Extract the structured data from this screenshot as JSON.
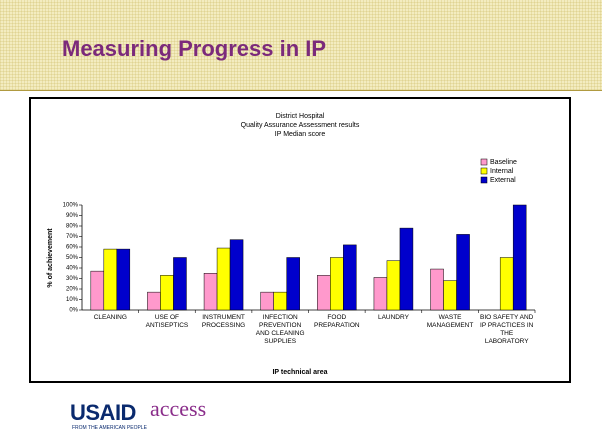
{
  "header": {
    "title": "Measuring Progress in IP"
  },
  "chart_data": {
    "type": "bar",
    "title": [
      "District Hospital",
      "Quality Assurance Assessment results",
      "IP Median score"
    ],
    "x_label": "IP technical area",
    "y_label": "% of achievement",
    "categories": [
      "CLEANING",
      "USE OF ANTISEPTICS",
      "INSTRUMENT PROCESSING",
      "INFECTION PREVENTION AND CLEANING SUPPLIES",
      "FOOD PREPARATION",
      "LAUNDRY",
      "WASTE MANAGEMENT",
      "BIO SAFETY AND IP PRACTICES IN THE LABORATORY"
    ],
    "series": [
      {
        "name": "Baseline",
        "color": "#ff99cc",
        "values": [
          37,
          17,
          35,
          17,
          33,
          31,
          39,
          null
        ]
      },
      {
        "name": "Internal",
        "color": "#ffff00",
        "values": [
          58,
          33,
          59,
          17,
          50,
          47,
          28,
          50
        ]
      },
      {
        "name": "External",
        "color": "#0000cc",
        "values": [
          58,
          50,
          67,
          50,
          62,
          78,
          72,
          100
        ]
      }
    ],
    "ylim": [
      0,
      100
    ],
    "yticks": [
      {
        "value": 0,
        "label": "0%"
      },
      {
        "value": 10,
        "label": "10%"
      },
      {
        "value": 20,
        "label": "20%"
      },
      {
        "value": 30,
        "label": "30%"
      },
      {
        "value": 40,
        "label": "40%"
      },
      {
        "value": 50,
        "label": "50%"
      },
      {
        "value": 60,
        "label": "60%"
      },
      {
        "value": 70,
        "label": "70%"
      },
      {
        "value": 80,
        "label": "80%"
      },
      {
        "value": 90,
        "label": "90%"
      },
      {
        "value": 100,
        "label": "100%"
      }
    ],
    "legend": "right"
  },
  "footer": {
    "logos": [
      "USAID",
      "FROM THE AMERICAN PEOPLE",
      "access"
    ]
  }
}
